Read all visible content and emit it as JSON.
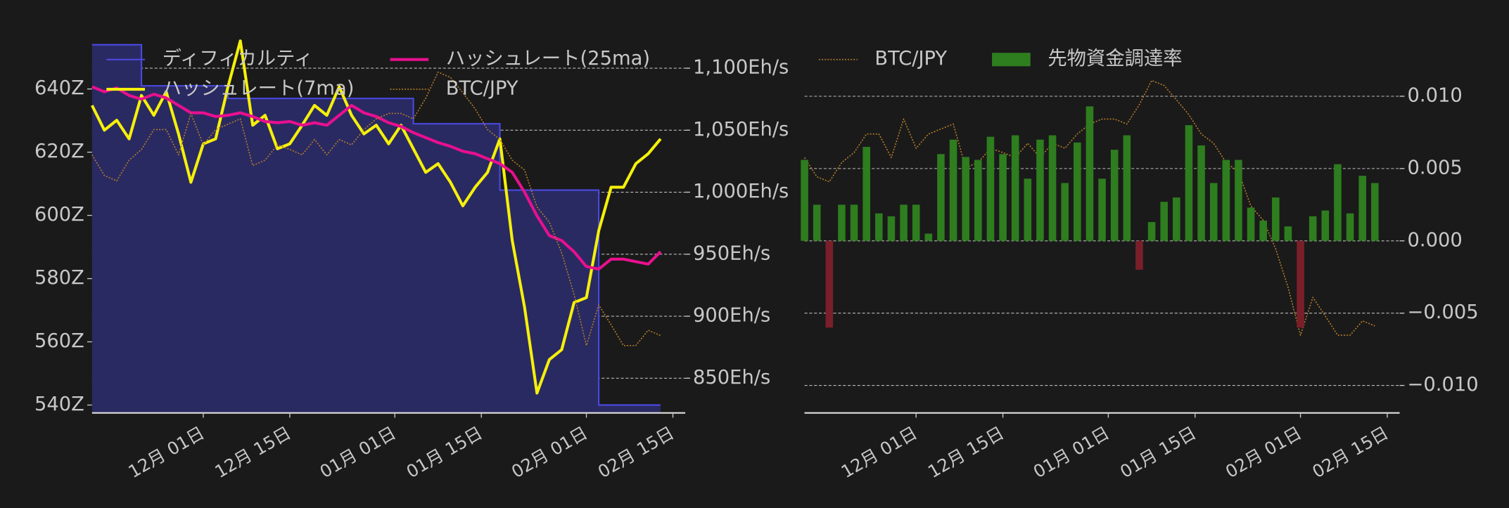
{
  "chart_data": [
    {
      "type": "line",
      "x": [
        "11-13",
        "11-15",
        "11-17",
        "11-19",
        "11-21",
        "11-23",
        "11-25",
        "11-27",
        "11-29",
        "12-01",
        "12-03",
        "12-05",
        "12-07",
        "12-09",
        "12-11",
        "12-13",
        "12-15",
        "12-17",
        "12-19",
        "12-21",
        "12-23",
        "12-25",
        "12-27",
        "12-29",
        "12-31",
        "01-02",
        "01-04",
        "01-06",
        "01-08",
        "01-10",
        "01-12",
        "01-14",
        "01-16",
        "01-18",
        "01-20",
        "01-22",
        "01-24",
        "01-26",
        "01-28",
        "01-30",
        "02-01",
        "02-03",
        "02-05",
        "02-07",
        "02-09",
        "02-11",
        "02-13"
      ],
      "xlim": [
        "11-13",
        "02-17"
      ],
      "xticks": [
        {
          "value": "12-01",
          "label": "12月 01日"
        },
        {
          "value": "12-15",
          "label": "12月 15日"
        },
        {
          "value": "01-01",
          "label": "01月 01日"
        },
        {
          "value": "01-15",
          "label": "01月 15日"
        },
        {
          "value": "02-01",
          "label": "02月 01日"
        },
        {
          "value": "02-15",
          "label": "02月 15日"
        }
      ],
      "ylim": [
        537.5,
        656
      ],
      "yticks": [
        {
          "value": 540,
          "label": "540Z"
        },
        {
          "value": 560,
          "label": "560Z"
        },
        {
          "value": 580,
          "label": "580Z"
        },
        {
          "value": 600,
          "label": "600Z"
        },
        {
          "value": 620,
          "label": "620Z"
        },
        {
          "value": 640,
          "label": "640Z"
        }
      ],
      "y2lim": [
        822,
        1124
      ],
      "y2ticks": [
        {
          "value": 850,
          "label": "850Eh/s"
        },
        {
          "value": 900,
          "label": "900Eh/s"
        },
        {
          "value": 950,
          "label": "950Eh/s"
        },
        {
          "value": 1000,
          "label": "1,000Eh/s"
        },
        {
          "value": 1050,
          "label": "1,050Eh/s"
        },
        {
          "value": 1100,
          "label": "1,100Eh/s"
        }
      ],
      "y3lim": [
        10460000,
        15350000
      ],
      "grid": "y2",
      "legend": "upper left",
      "legend_columns": 2,
      "series": [
        {
          "name": "ディフィカルティ",
          "style": "step-fill",
          "axis": "y",
          "color": "#4a4ae6",
          "fill": "#2a2a62",
          "values": [
            654,
            654,
            654,
            654,
            641,
            641,
            641,
            641,
            641,
            641,
            641,
            637,
            637,
            637,
            637,
            637,
            637,
            637,
            637,
            637,
            637,
            637,
            637,
            637,
            637,
            637,
            629,
            629,
            629,
            629,
            629,
            629,
            629,
            608,
            608,
            608,
            608,
            608,
            608,
            608,
            608,
            540,
            540,
            540,
            540,
            540,
            540
          ]
        },
        {
          "name": "ハッシュレート(7ma)",
          "style": "line",
          "axis": "y2",
          "color": "#f5f00a",
          "values": [
            1070,
            1050,
            1058,
            1043,
            1078,
            1062,
            1081,
            1047,
            1008,
            1039,
            1043,
            1085,
            1122,
            1054,
            1062,
            1035,
            1039,
            1054,
            1070,
            1062,
            1085,
            1062,
            1047,
            1054,
            1039,
            1054,
            1035,
            1016,
            1023,
            1008,
            989,
            1004,
            1016,
            1043,
            961,
            907,
            838,
            865,
            873,
            911,
            915,
            969,
            1004,
            1004,
            1023,
            1031,
            1043
          ]
        },
        {
          "name": "ハッシュレート(25ma)",
          "style": "line",
          "axis": "y2",
          "color": "#e8108e",
          "values": [
            1085,
            1081,
            1084,
            1078,
            1075,
            1079,
            1076,
            1070,
            1064,
            1064,
            1061,
            1062,
            1064,
            1061,
            1057,
            1056,
            1057,
            1054,
            1056,
            1054,
            1062,
            1070,
            1064,
            1061,
            1056,
            1053,
            1048,
            1044,
            1040,
            1037,
            1033,
            1031,
            1027,
            1023,
            1016,
            1000,
            981,
            965,
            961,
            952,
            940,
            938,
            946,
            946,
            944,
            942,
            952
          ]
        },
        {
          "name": "BTC/JPY",
          "style": "dotted",
          "axis": "y3",
          "color": "#b07a2a",
          "values": [
            13830000,
            13560000,
            13490000,
            13760000,
            13900000,
            14160000,
            14160000,
            13830000,
            14370000,
            13960000,
            14160000,
            14230000,
            14300000,
            13690000,
            13760000,
            13960000,
            13900000,
            13830000,
            14030000,
            13830000,
            14030000,
            13960000,
            14160000,
            14300000,
            14370000,
            14370000,
            14300000,
            14570000,
            14910000,
            14840000,
            14640000,
            14430000,
            14160000,
            14030000,
            13760000,
            13630000,
            13150000,
            12950000,
            12550000,
            12010000,
            11340000,
            11870000,
            11610000,
            11340000,
            11340000,
            11540000,
            11470000
          ]
        }
      ]
    },
    {
      "type": "bar",
      "x": [
        "11-13",
        "11-15",
        "11-17",
        "11-19",
        "11-21",
        "11-23",
        "11-25",
        "11-27",
        "11-29",
        "12-01",
        "12-03",
        "12-05",
        "12-07",
        "12-09",
        "12-11",
        "12-13",
        "12-15",
        "12-17",
        "12-19",
        "12-21",
        "12-23",
        "12-25",
        "12-27",
        "12-29",
        "12-31",
        "01-02",
        "01-04",
        "01-06",
        "01-08",
        "01-10",
        "01-12",
        "01-14",
        "01-16",
        "01-18",
        "01-20",
        "01-22",
        "01-24",
        "01-26",
        "01-28",
        "01-30",
        "02-01",
        "02-03",
        "02-05",
        "02-07",
        "02-09",
        "02-11",
        "02-13"
      ],
      "xlim": [
        "11-13",
        "02-17"
      ],
      "xticks": [
        {
          "value": "12-01",
          "label": "12月 01日"
        },
        {
          "value": "12-15",
          "label": "12月 15日"
        },
        {
          "value": "01-01",
          "label": "01月 01日"
        },
        {
          "value": "01-15",
          "label": "01月 15日"
        },
        {
          "value": "02-01",
          "label": "02月 01日"
        },
        {
          "value": "02-15",
          "label": "02月 15日"
        }
      ],
      "ylim": [
        -0.0119,
        0.014
      ],
      "yticks": [
        {
          "value": -0.01,
          "label": "−0.010"
        },
        {
          "value": -0.005,
          "label": "−0.005"
        },
        {
          "value": 0,
          "label": "0.000"
        },
        {
          "value": 0.005,
          "label": "0.005"
        },
        {
          "value": 0.01,
          "label": "0.010"
        }
      ],
      "yaxis_side": "right",
      "y2lim": [
        10250000,
        15500000
      ],
      "grid": "y",
      "legend": "upper left",
      "legend_columns": 2,
      "series": [
        {
          "name": "BTC/JPY",
          "style": "dotted",
          "axis": "y2",
          "color": "#b07a2a",
          "values": [
            13830000,
            13560000,
            13490000,
            13760000,
            13900000,
            14160000,
            14160000,
            13830000,
            14370000,
            13960000,
            14160000,
            14230000,
            14300000,
            13690000,
            13760000,
            13960000,
            13900000,
            13830000,
            14030000,
            13830000,
            14030000,
            13960000,
            14160000,
            14300000,
            14370000,
            14370000,
            14300000,
            14570000,
            14910000,
            14840000,
            14640000,
            14430000,
            14160000,
            14030000,
            13760000,
            13630000,
            13150000,
            12950000,
            12550000,
            12010000,
            11340000,
            11870000,
            11610000,
            11340000,
            11340000,
            11540000,
            11470000
          ]
        },
        {
          "name": "先物資金調達率",
          "style": "bar",
          "axis": "y",
          "color": "#2e7d1f",
          "negative_color": "#7a1f2a",
          "values": [
            0.0056,
            0.0025,
            -0.006,
            0.0025,
            0.0025,
            0.0065,
            0.0019,
            0.0017,
            0.0025,
            0.0025,
            0.0005,
            0.006,
            0.007,
            0.0058,
            0.0056,
            0.0072,
            0.006,
            0.0073,
            0.0043,
            0.007,
            0.0073,
            0.004,
            0.0068,
            0.0093,
            0.0043,
            0.0063,
            0.0073,
            -0.002,
            0.0013,
            0.0027,
            0.003,
            0.008,
            0.0066,
            0.004,
            0.0056,
            0.0056,
            0.0023,
            0.0014,
            0.003,
            0.001,
            -0.006,
            0.0017,
            0.0021,
            0.0053,
            0.0019,
            0.0045,
            0.004
          ]
        }
      ]
    }
  ]
}
